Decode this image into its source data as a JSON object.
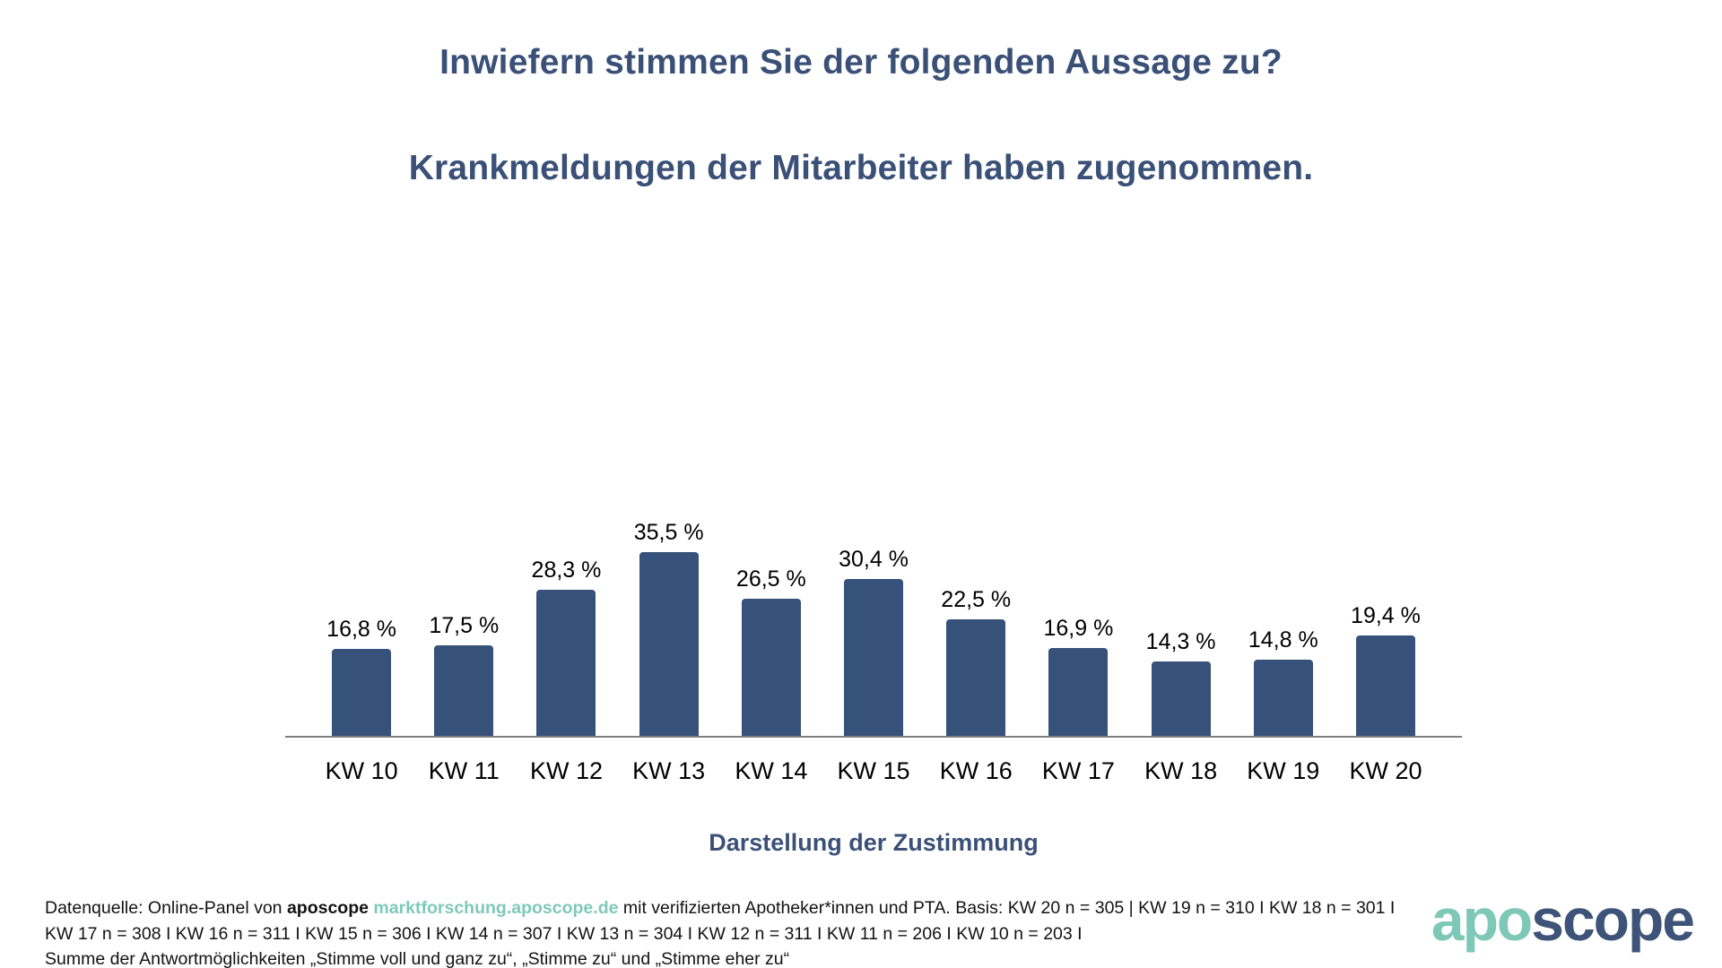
{
  "title": {
    "line1": "Inwiefern stimmen Sie der folgenden Aussage zu?",
    "line2": "Krankmeldungen der Mitarbeiter haben zugenommen."
  },
  "chart_data": {
    "type": "bar",
    "categories": [
      "KW 10",
      "KW 11",
      "KW 12",
      "KW 13",
      "KW 14",
      "KW 15",
      "KW 16",
      "KW 17",
      "KW 18",
      "KW 19",
      "KW 20"
    ],
    "values": [
      16.8,
      17.5,
      28.3,
      35.5,
      26.5,
      30.4,
      22.5,
      16.9,
      14.3,
      14.8,
      19.4
    ],
    "value_labels": [
      "16,8 %",
      "17,5 %",
      "28,3 %",
      "35,5 %",
      "26,5 %",
      "30,4 %",
      "22,5 %",
      "16,9 %",
      "14,3 %",
      "14,8 %",
      "19,4 %"
    ],
    "title": "",
    "xlabel": "Darstellung der Zustimmung",
    "ylabel": "",
    "ylim": [
      0,
      40
    ],
    "grid": false,
    "legend": "none",
    "bar_color": "#36527A",
    "axis_line_color": "#7f7f7f"
  },
  "footer": {
    "line1_parts": [
      {
        "text": "Datenquelle: Online-Panel von ",
        "style": "normal"
      },
      {
        "text": "aposcope",
        "style": "bold"
      },
      {
        "text": " ",
        "style": "normal"
      },
      {
        "text": "marktforschung.aposcope.de",
        "style": "link"
      },
      {
        "text": " mit verifizierten Apotheker*innen und PTA. Basis: KW 20 n = 305 | KW 19 n = 310 I KW 18 n = 301 I",
        "style": "normal"
      }
    ],
    "line2": "KW 17 n = 308 I KW 16 n = 311 I KW 15 n = 306 I KW 14 n = 307 I KW 13 n = 304 I KW 12 n = 311 I KW 11 n = 206 I KW 10 n = 203 I",
    "line3": "Summe der Antwortmöglichkeiten „Stimme voll und ganz zu“, „Stimme zu“ und „Stimme eher zu“"
  },
  "logo": {
    "part1": "apo",
    "part2": "scope",
    "color_part1": "#7EC8B8",
    "color_part2": "#3E5378"
  }
}
